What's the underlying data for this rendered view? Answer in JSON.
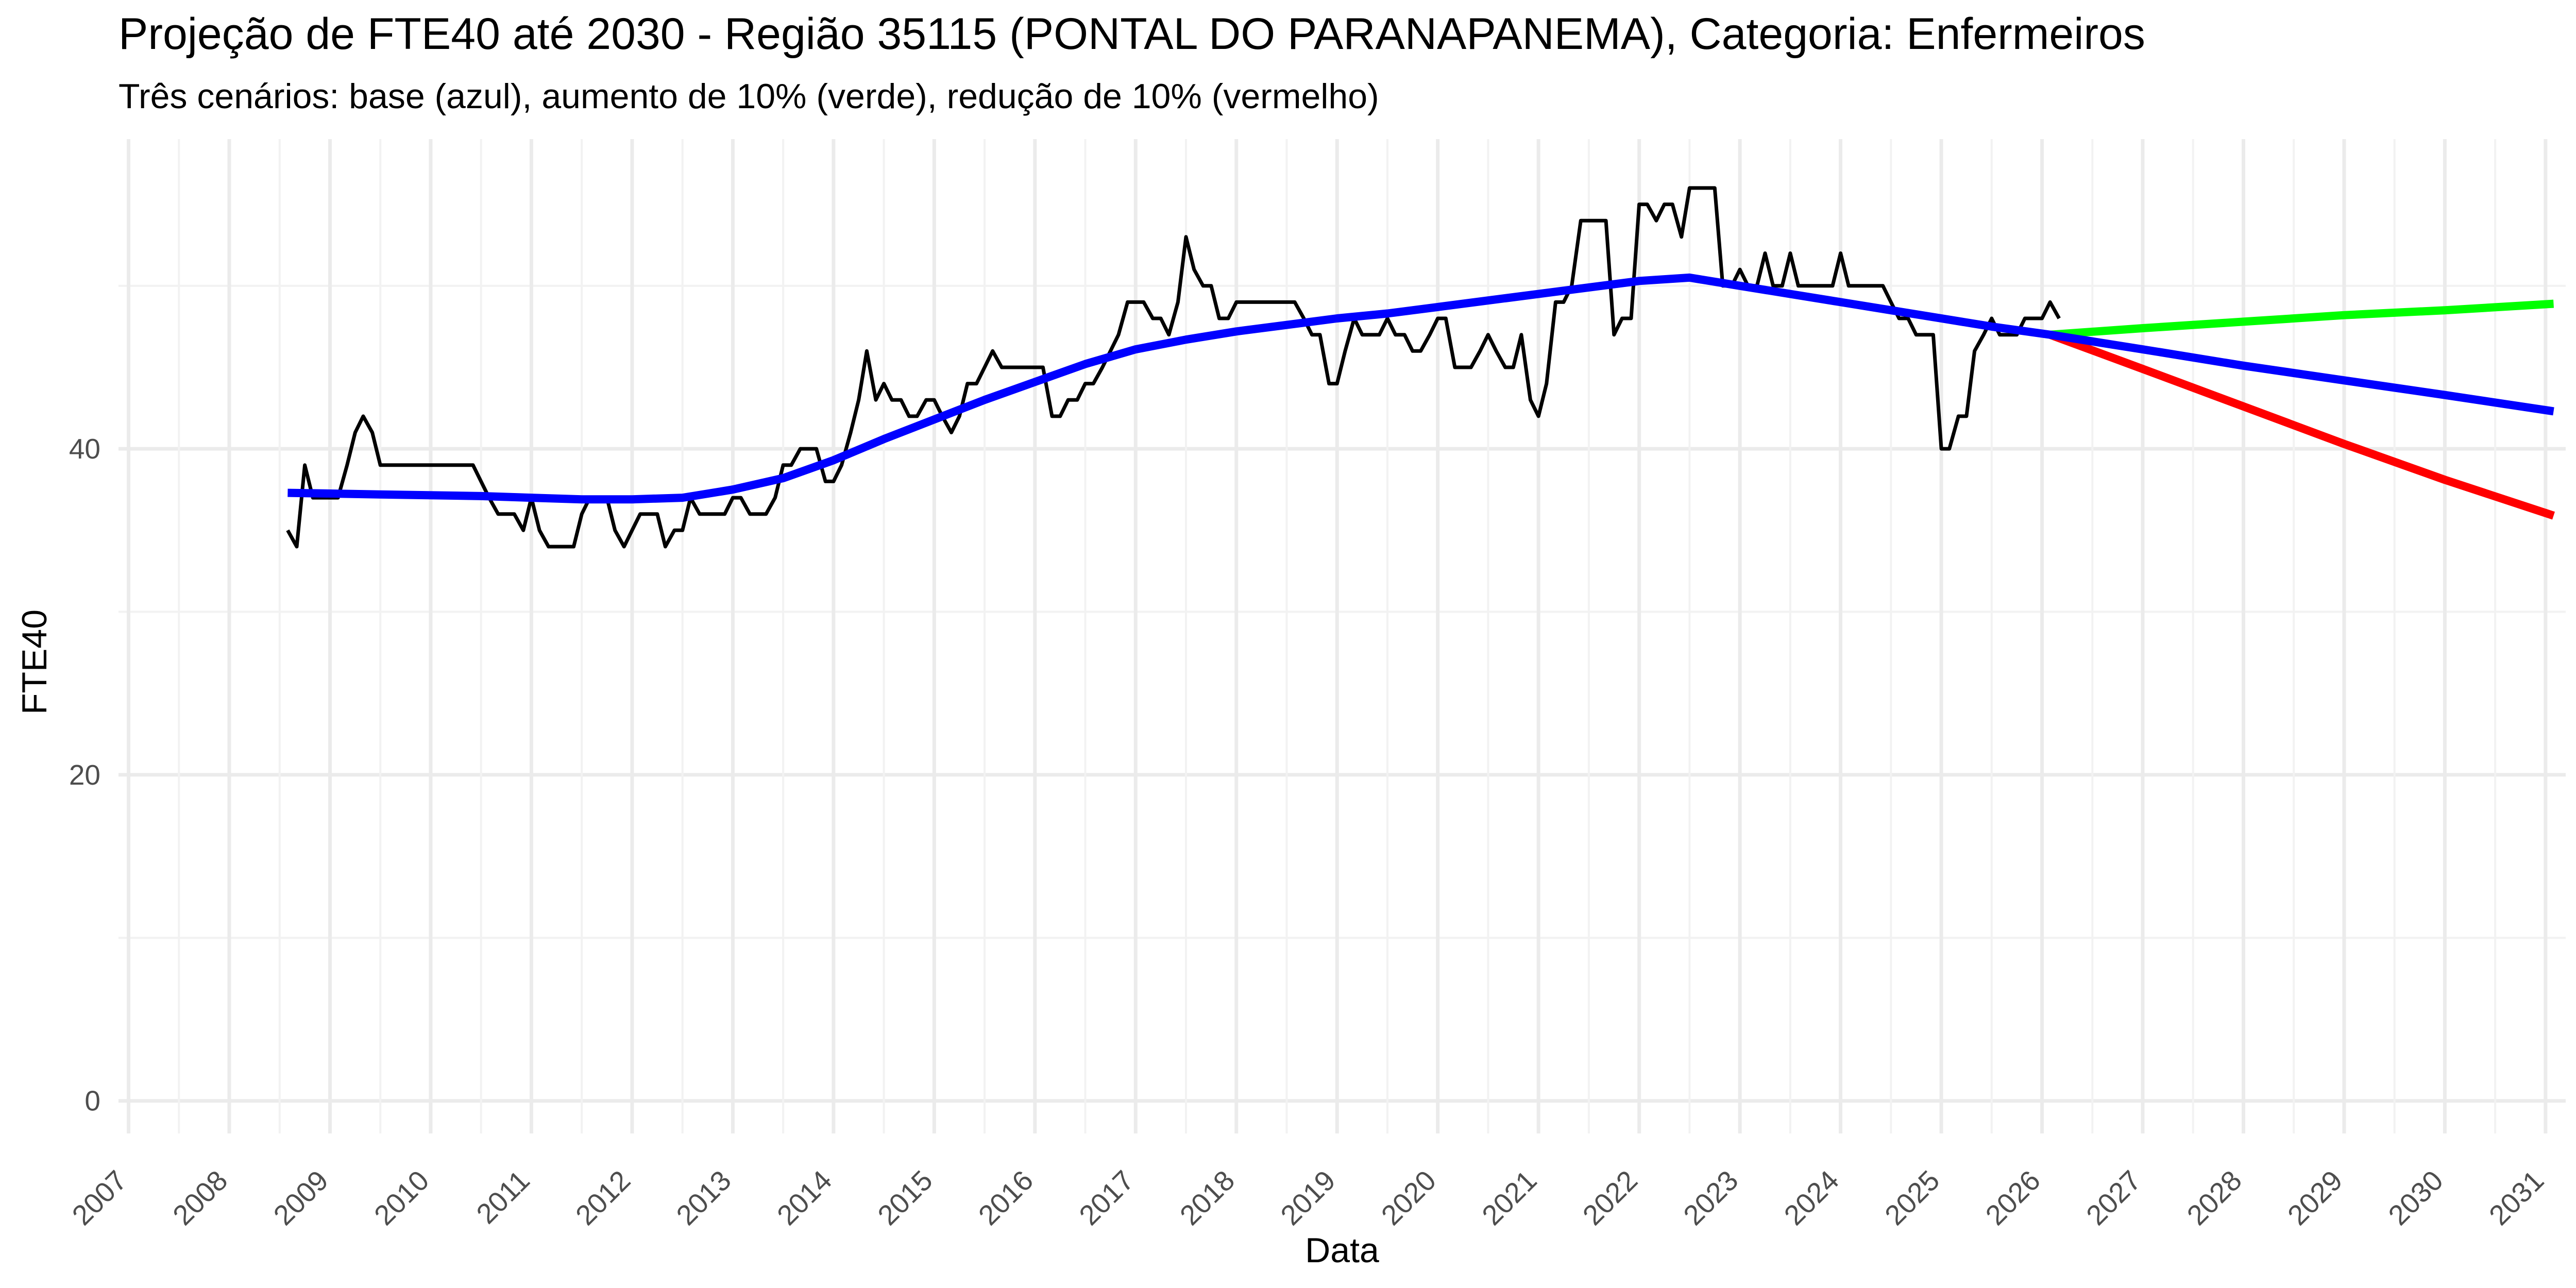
{
  "chart_data": {
    "type": "line",
    "title": "Projeção de FTE40 até 2030 - Região 35115 (PONTAL DO PARANAPANEMA), Categoria: Enfermeiros",
    "subtitle": "Três cenários: base (azul), aumento de 10% (verde), redução de 10% (vermelho)",
    "xlabel": "Data",
    "ylabel": "FTE40",
    "xlim": [
      2006.9,
      2031.2
    ],
    "ylim": [
      -2,
      59
    ],
    "x_ticks": [
      "2007",
      "2008",
      "2009",
      "2010",
      "2011",
      "2012",
      "2013",
      "2014",
      "2015",
      "2016",
      "2017",
      "2018",
      "2019",
      "2020",
      "2021",
      "2022",
      "2023",
      "2024",
      "2025",
      "2026",
      "2027",
      "2028",
      "2029",
      "2030",
      "2031"
    ],
    "y_ticks": [
      "0",
      "20",
      "40"
    ],
    "y_tick_values": [
      0,
      20,
      40
    ],
    "grid": true,
    "series": [
      {
        "role": "observed",
        "color": "#000000",
        "points": [
          [
            2008.58,
            35
          ],
          [
            2008.67,
            34
          ],
          [
            2008.75,
            39
          ],
          [
            2008.83,
            37
          ],
          [
            2008.92,
            37
          ],
          [
            2009.0,
            37
          ],
          [
            2009.08,
            37
          ],
          [
            2009.17,
            39
          ],
          [
            2009.25,
            41
          ],
          [
            2009.33,
            42
          ],
          [
            2009.42,
            41
          ],
          [
            2009.5,
            39
          ],
          [
            2009.58,
            39
          ],
          [
            2010.25,
            39
          ],
          [
            2010.42,
            39
          ],
          [
            2010.5,
            38
          ],
          [
            2010.58,
            37
          ],
          [
            2010.67,
            36
          ],
          [
            2010.75,
            36
          ],
          [
            2010.83,
            36
          ],
          [
            2010.92,
            35
          ],
          [
            2011.0,
            37
          ],
          [
            2011.08,
            35
          ],
          [
            2011.17,
            34
          ],
          [
            2011.25,
            34
          ],
          [
            2011.33,
            34
          ],
          [
            2011.42,
            34
          ],
          [
            2011.5,
            36
          ],
          [
            2011.58,
            37
          ],
          [
            2011.67,
            37
          ],
          [
            2011.75,
            37
          ],
          [
            2011.83,
            35
          ],
          [
            2011.92,
            34
          ],
          [
            2012.0,
            35
          ],
          [
            2012.08,
            36
          ],
          [
            2012.17,
            36
          ],
          [
            2012.25,
            36
          ],
          [
            2012.33,
            34
          ],
          [
            2012.42,
            35
          ],
          [
            2012.5,
            35
          ],
          [
            2012.58,
            37
          ],
          [
            2012.67,
            36
          ],
          [
            2012.75,
            36
          ],
          [
            2012.83,
            36
          ],
          [
            2012.92,
            36
          ],
          [
            2013.0,
            37
          ],
          [
            2013.08,
            37
          ],
          [
            2013.17,
            36
          ],
          [
            2013.25,
            36
          ],
          [
            2013.33,
            36
          ],
          [
            2013.42,
            37
          ],
          [
            2013.5,
            39
          ],
          [
            2013.58,
            39
          ],
          [
            2013.67,
            40
          ],
          [
            2013.75,
            40
          ],
          [
            2013.83,
            40
          ],
          [
            2013.92,
            38
          ],
          [
            2014.0,
            38
          ],
          [
            2014.08,
            39
          ],
          [
            2014.17,
            41
          ],
          [
            2014.25,
            43
          ],
          [
            2014.33,
            46
          ],
          [
            2014.42,
            43
          ],
          [
            2014.5,
            44
          ],
          [
            2014.58,
            43
          ],
          [
            2014.67,
            43
          ],
          [
            2014.75,
            42
          ],
          [
            2014.83,
            42
          ],
          [
            2014.92,
            43
          ],
          [
            2015.0,
            43
          ],
          [
            2015.08,
            42
          ],
          [
            2015.17,
            41
          ],
          [
            2015.25,
            42
          ],
          [
            2015.33,
            44
          ],
          [
            2015.42,
            44
          ],
          [
            2015.5,
            45
          ],
          [
            2015.58,
            46
          ],
          [
            2015.67,
            45
          ],
          [
            2015.75,
            45
          ],
          [
            2015.83,
            45
          ],
          [
            2015.92,
            45
          ],
          [
            2016.0,
            45
          ],
          [
            2016.08,
            45
          ],
          [
            2016.17,
            42
          ],
          [
            2016.25,
            42
          ],
          [
            2016.33,
            43
          ],
          [
            2016.42,
            43
          ],
          [
            2016.5,
            44
          ],
          [
            2016.58,
            44
          ],
          [
            2016.67,
            45
          ],
          [
            2016.75,
            46
          ],
          [
            2016.83,
            47
          ],
          [
            2016.92,
            49
          ],
          [
            2017.0,
            49
          ],
          [
            2017.08,
            49
          ],
          [
            2017.17,
            48
          ],
          [
            2017.25,
            48
          ],
          [
            2017.33,
            47
          ],
          [
            2017.42,
            49
          ],
          [
            2017.5,
            53
          ],
          [
            2017.58,
            51
          ],
          [
            2017.67,
            50
          ],
          [
            2017.75,
            50
          ],
          [
            2017.83,
            48
          ],
          [
            2017.92,
            48
          ],
          [
            2018.0,
            49
          ],
          [
            2018.58,
            49
          ],
          [
            2018.67,
            48
          ],
          [
            2018.75,
            47
          ],
          [
            2018.83,
            47
          ],
          [
            2018.92,
            44
          ],
          [
            2019.0,
            44
          ],
          [
            2019.08,
            46
          ],
          [
            2019.17,
            48
          ],
          [
            2019.25,
            47
          ],
          [
            2019.33,
            47
          ],
          [
            2019.42,
            47
          ],
          [
            2019.5,
            48
          ],
          [
            2019.58,
            47
          ],
          [
            2019.67,
            47
          ],
          [
            2019.75,
            46
          ],
          [
            2019.83,
            46
          ],
          [
            2019.92,
            47
          ],
          [
            2020.0,
            48
          ],
          [
            2020.08,
            48
          ],
          [
            2020.17,
            45
          ],
          [
            2020.25,
            45
          ],
          [
            2020.33,
            45
          ],
          [
            2020.42,
            46
          ],
          [
            2020.5,
            47
          ],
          [
            2020.58,
            46
          ],
          [
            2020.67,
            45
          ],
          [
            2020.75,
            45
          ],
          [
            2020.83,
            47
          ],
          [
            2020.92,
            43
          ],
          [
            2021.0,
            42
          ],
          [
            2021.08,
            44
          ],
          [
            2021.17,
            49
          ],
          [
            2021.25,
            49
          ],
          [
            2021.33,
            50
          ],
          [
            2021.42,
            54
          ],
          [
            2021.5,
            54
          ],
          [
            2021.58,
            54
          ],
          [
            2021.67,
            54
          ],
          [
            2021.75,
            47
          ],
          [
            2021.83,
            48
          ],
          [
            2021.92,
            48
          ],
          [
            2022.0,
            55
          ],
          [
            2022.08,
            55
          ],
          [
            2022.17,
            54
          ],
          [
            2022.25,
            55
          ],
          [
            2022.33,
            55
          ],
          [
            2022.42,
            53
          ],
          [
            2022.5,
            56
          ],
          [
            2022.58,
            56
          ],
          [
            2022.67,
            56
          ],
          [
            2022.75,
            56
          ],
          [
            2022.83,
            50
          ],
          [
            2022.92,
            50
          ],
          [
            2023.0,
            51
          ],
          [
            2023.08,
            50
          ],
          [
            2023.17,
            50
          ],
          [
            2023.25,
            52
          ],
          [
            2023.33,
            50
          ],
          [
            2023.42,
            50
          ],
          [
            2023.5,
            52
          ],
          [
            2023.58,
            50
          ],
          [
            2023.67,
            50
          ],
          [
            2023.75,
            50
          ],
          [
            2023.83,
            50
          ],
          [
            2023.92,
            50
          ],
          [
            2024.0,
            52
          ],
          [
            2024.08,
            50
          ],
          [
            2024.17,
            50
          ],
          [
            2024.25,
            50
          ],
          [
            2024.33,
            50
          ],
          [
            2024.42,
            50
          ],
          [
            2024.5,
            49
          ],
          [
            2024.58,
            48
          ],
          [
            2024.67,
            48
          ],
          [
            2024.75,
            47
          ],
          [
            2024.83,
            47
          ],
          [
            2024.92,
            47
          ],
          [
            2025.0,
            40
          ],
          [
            2025.08,
            40
          ],
          [
            2025.17,
            42
          ],
          [
            2025.25,
            42
          ],
          [
            2025.33,
            46
          ],
          [
            2025.42,
            47
          ],
          [
            2025.5,
            48
          ],
          [
            2025.58,
            47
          ],
          [
            2025.67,
            47
          ],
          [
            2025.75,
            47
          ],
          [
            2025.83,
            48
          ],
          [
            2025.92,
            48
          ],
          [
            2026.0,
            48
          ],
          [
            2026.08,
            49
          ],
          [
            2026.17,
            48
          ]
        ]
      },
      {
        "role": "base",
        "color": "#0000ff",
        "points": [
          [
            2008.58,
            37.3
          ],
          [
            2009.5,
            37.2
          ],
          [
            2010.5,
            37.1
          ],
          [
            2011.0,
            37.0
          ],
          [
            2011.5,
            36.9
          ],
          [
            2012.0,
            36.9
          ],
          [
            2012.5,
            37.0
          ],
          [
            2013.0,
            37.5
          ],
          [
            2013.5,
            38.2
          ],
          [
            2014.0,
            39.3
          ],
          [
            2014.5,
            40.6
          ],
          [
            2015.0,
            41.8
          ],
          [
            2015.5,
            43.0
          ],
          [
            2016.0,
            44.1
          ],
          [
            2016.5,
            45.2
          ],
          [
            2017.0,
            46.1
          ],
          [
            2017.5,
            46.7
          ],
          [
            2018.0,
            47.2
          ],
          [
            2018.5,
            47.6
          ],
          [
            2019.0,
            48.0
          ],
          [
            2019.5,
            48.3
          ],
          [
            2020.0,
            48.7
          ],
          [
            2020.5,
            49.1
          ],
          [
            2021.0,
            49.5
          ],
          [
            2021.5,
            49.9
          ],
          [
            2022.0,
            50.3
          ],
          [
            2022.5,
            50.5
          ],
          [
            2023.0,
            50.0
          ],
          [
            2023.5,
            49.5
          ],
          [
            2024.0,
            49.0
          ],
          [
            2024.5,
            48.5
          ],
          [
            2025.0,
            48.0
          ],
          [
            2025.5,
            47.5
          ],
          [
            2026.08,
            47.0
          ],
          [
            2027.0,
            46.1
          ],
          [
            2028.0,
            45.1
          ],
          [
            2029.0,
            44.2
          ],
          [
            2030.0,
            43.3
          ],
          [
            2031.08,
            42.3
          ]
        ]
      },
      {
        "role": "increase",
        "color": "#00ff00",
        "points": [
          [
            2026.08,
            47.0
          ],
          [
            2027.0,
            47.4
          ],
          [
            2028.0,
            47.8
          ],
          [
            2029.0,
            48.2
          ],
          [
            2030.0,
            48.5
          ],
          [
            2031.08,
            48.9
          ]
        ]
      },
      {
        "role": "decrease",
        "color": "#ff0000",
        "points": [
          [
            2026.08,
            47.0
          ],
          [
            2027.0,
            44.9
          ],
          [
            2028.0,
            42.6
          ],
          [
            2029.0,
            40.3
          ],
          [
            2030.0,
            38.1
          ],
          [
            2031.08,
            35.9
          ]
        ]
      }
    ]
  }
}
